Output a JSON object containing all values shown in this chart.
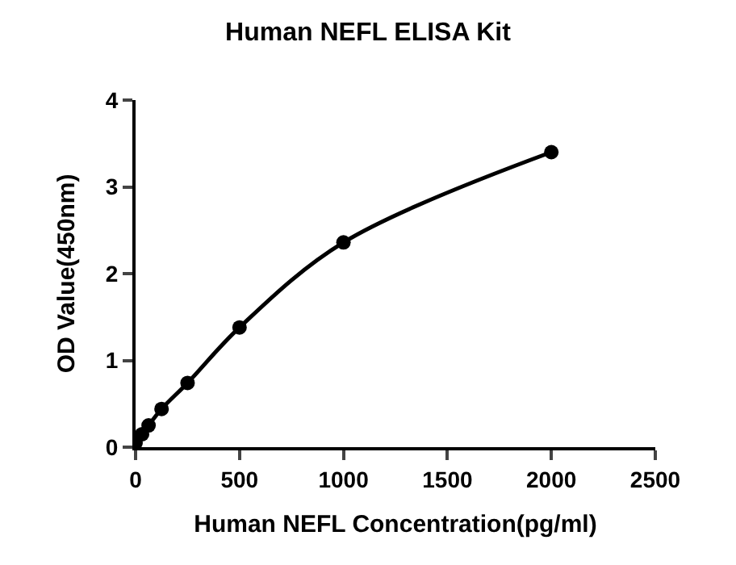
{
  "chart_data": {
    "type": "line",
    "title": "Human NEFL ELISA Kit",
    "xlabel": "Human NEFL Concentration(pg/ml)",
    "ylabel": "OD Value(450nm)",
    "x": [
      0,
      31.25,
      62.5,
      125,
      250,
      500,
      1000,
      2000
    ],
    "series": [
      {
        "color": "#000000",
        "values": [
          0.05,
          0.15,
          0.25,
          0.44,
          0.74,
          1.38,
          2.36,
          3.4
        ]
      }
    ],
    "xlim": [
      0,
      2500
    ],
    "xticks": [
      0,
      500,
      1000,
      1500,
      2000,
      2500
    ],
    "ylim": [
      0,
      4
    ],
    "yticks": [
      0,
      1,
      2,
      3,
      4
    ],
    "marker": "circle",
    "line_style": "solid"
  }
}
